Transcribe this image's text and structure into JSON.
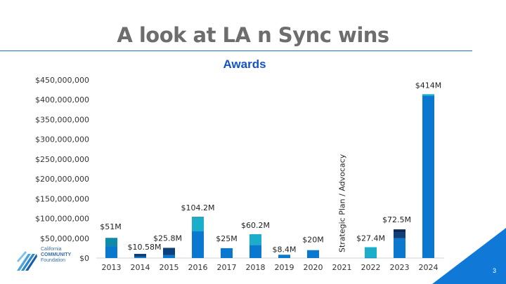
{
  "slide": {
    "title": "A look at LA n Sync wins",
    "page_number": "3",
    "logo": {
      "line1": "California",
      "line2": "COMMUNITY",
      "line3": "Foundation"
    }
  },
  "chart_data": {
    "type": "bar",
    "stacked": true,
    "title": "Awards",
    "xlabel": "",
    "ylabel": "",
    "ylim": [
      0,
      450000000
    ],
    "yticks": [
      0,
      50000000,
      100000000,
      150000000,
      200000000,
      250000000,
      300000000,
      350000000,
      400000000,
      450000000
    ],
    "ytick_labels": [
      "$0",
      "$50,000,000",
      "$100,000,000",
      "$150,000,000",
      "$200,000,000",
      "$250,000,000",
      "$300,000,000",
      "$350,000,000",
      "$400,000,000",
      "$450,000,000"
    ],
    "grid": false,
    "categories": [
      "2013",
      "2014",
      "2015",
      "2016",
      "2017",
      "2018",
      "2019",
      "2020",
      "2021",
      "2022",
      "2023",
      "2024"
    ],
    "colors": [
      "#0b78d0",
      "#1aaecb",
      "#0f8aa8",
      "#0e3f7a",
      "#0a2a5c"
    ],
    "segments": [
      [
        30000000,
        0,
        21000000,
        0,
        0
      ],
      [
        3000000,
        0,
        0,
        7580000,
        0
      ],
      [
        8000000,
        0,
        0,
        17800000,
        0
      ],
      [
        68000000,
        34000000,
        2200000,
        0,
        0
      ],
      [
        25000000,
        0,
        0,
        0,
        0
      ],
      [
        33000000,
        27200000,
        0,
        0,
        0
      ],
      [
        8400000,
        0,
        0,
        0,
        0
      ],
      [
        20000000,
        0,
        0,
        0,
        0
      ],
      [
        0,
        0,
        0,
        0,
        0
      ],
      [
        1000000,
        26400000,
        0,
        0,
        0
      ],
      [
        50000000,
        0,
        0,
        14000000,
        8500000
      ],
      [
        410000000,
        4000000,
        0,
        0,
        0
      ]
    ],
    "totals": [
      51000000,
      10580000,
      25800000,
      104200000,
      25000000,
      60200000,
      8400000,
      20000000,
      0,
      27400000,
      72500000,
      414000000
    ],
    "data_labels": [
      "$51M",
      "$10.58M",
      "$25.8M",
      "$104.2M",
      "$25M",
      "$60.2M",
      "$8.4M",
      "$20M",
      "",
      "$27.4M",
      "$72.5M",
      "$414M"
    ],
    "annotations": [
      {
        "category": "2021",
        "text": "Strategic Plan / Advocacy"
      }
    ]
  }
}
